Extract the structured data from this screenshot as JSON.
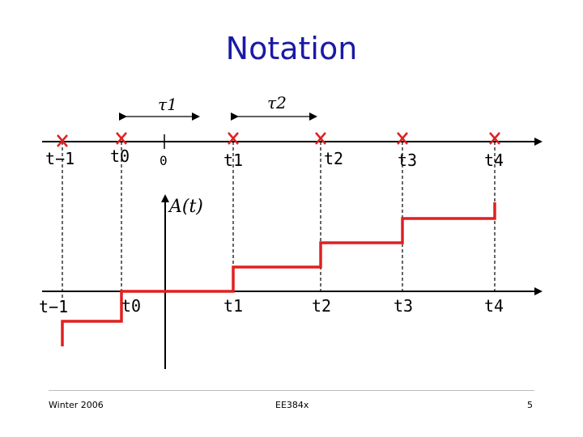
{
  "slide": {
    "title": "Notation"
  },
  "diagram": {
    "interval_labels": [
      "τ1",
      "τ2"
    ],
    "origin_label": "0",
    "top_axis_labels": [
      "t−1",
      "t0",
      "t1",
      "t2",
      "t3",
      "t4"
    ],
    "bottom_axis_labels": [
      "t−1",
      "t0",
      "t1",
      "t2",
      "t3",
      "t4"
    ],
    "function_label": "A(t)",
    "colors": {
      "arrival_marks": "#e02020",
      "step_function": "#e02020",
      "axes": "#000000",
      "title": "#1a1aa6"
    }
  },
  "footer": {
    "left": "Winter 2006",
    "center": "EE384x",
    "right": "5"
  }
}
